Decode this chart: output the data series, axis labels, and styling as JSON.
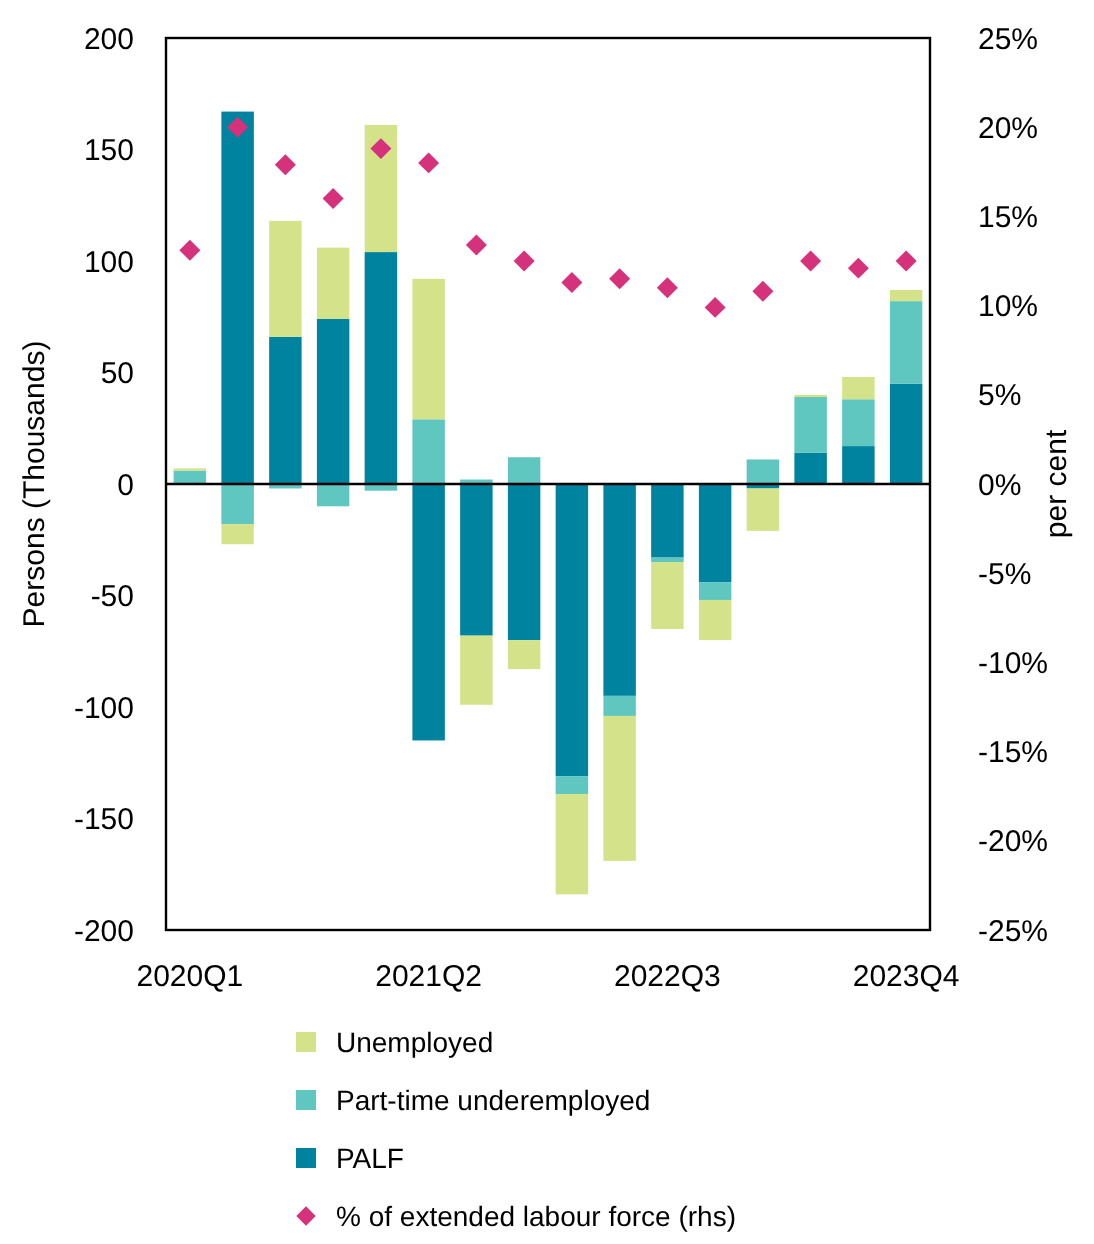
{
  "chart_data": {
    "type": "bar",
    "stacked": true,
    "ylabel": "Persons (Thousands)",
    "y2label": "per cent",
    "categories": [
      "2020Q1",
      null,
      null,
      null,
      null,
      "2021Q2",
      null,
      null,
      null,
      null,
      "2022Q3",
      null,
      null,
      null,
      null,
      "2023Q4"
    ],
    "ylim": [
      -200,
      200
    ],
    "yticks": [
      -200,
      -150,
      -100,
      -50,
      0,
      50,
      100,
      150,
      200
    ],
    "y2lim": [
      -25,
      25
    ],
    "y2ticks": [
      {
        "value": -25,
        "label": "-25%"
      },
      {
        "value": -20,
        "label": "-20%"
      },
      {
        "value": -15,
        "label": "-15%"
      },
      {
        "value": -10,
        "label": "-10%"
      },
      {
        "value": -5,
        "label": "-5%"
      },
      {
        "value": 0,
        "label": "0%"
      },
      {
        "value": 5,
        "label": "5%"
      },
      {
        "value": 10,
        "label": "10%"
      },
      {
        "value": 15,
        "label": "15%"
      },
      {
        "value": 20,
        "label": "20%"
      },
      {
        "value": 25,
        "label": "25%"
      }
    ],
    "legend": "bottom",
    "series": [
      {
        "name": "PALF",
        "color": "#00839f",
        "values": [
          0,
          167,
          66,
          74,
          104,
          -115,
          -68,
          -70,
          -131,
          -95,
          -33,
          -44,
          -2,
          14,
          17,
          45
        ]
      },
      {
        "name": "Part-time underemployed",
        "color": "#5fc6c0",
        "values": [
          6,
          -18,
          -2,
          -10,
          -3,
          29,
          2,
          12,
          -8,
          -9,
          -2,
          -8,
          11,
          25,
          21,
          37
        ]
      },
      {
        "name": "Unemployed",
        "color": "#d4e38a",
        "values": [
          1,
          -9,
          52,
          32,
          57,
          63,
          -31,
          -13,
          -45,
          -65,
          -30,
          -18,
          -19,
          1,
          10,
          5
        ]
      },
      {
        "name": "% of extended labour force (rhs)",
        "type": "scatter",
        "axis": "y2",
        "marker": "diamond",
        "color": "#d6317b",
        "values": [
          13.1,
          20.0,
          17.9,
          16.0,
          18.8,
          18.0,
          13.4,
          12.5,
          11.3,
          11.5,
          11.0,
          9.9,
          10.8,
          12.5,
          12.1,
          12.5
        ]
      }
    ]
  }
}
